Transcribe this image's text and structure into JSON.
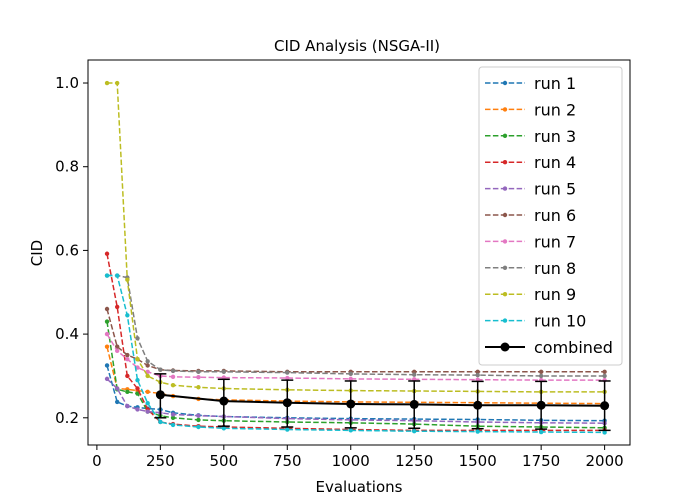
{
  "chart_data": {
    "type": "line",
    "title": "CID Analysis (NSGA-II)",
    "xlabel": "Evaluations",
    "ylabel": "CID",
    "xlim": [
      -35,
      2100
    ],
    "ylim": [
      0.135,
      1.055
    ],
    "xticks": [
      0,
      250,
      500,
      750,
      1000,
      1250,
      1500,
      1750,
      2000
    ],
    "yticks": [
      0.2,
      0.4,
      0.6,
      0.8,
      1.0
    ],
    "ytick_labels": [
      "0.2",
      "0.4",
      "0.6",
      "0.8",
      "1.0"
    ],
    "grid": false,
    "legend_position": "top-right",
    "series": [
      {
        "name": "run 1",
        "color": "#1f77b4",
        "x": [
          40,
          80,
          120,
          160,
          200,
          250,
          300,
          400,
          500,
          750,
          1000,
          1250,
          1500,
          1750,
          2000
        ],
        "y": [
          0.325,
          0.238,
          0.228,
          0.225,
          0.222,
          0.22,
          0.212,
          0.206,
          0.203,
          0.2,
          0.198,
          0.197,
          0.196,
          0.194,
          0.193
        ]
      },
      {
        "name": "run 2",
        "color": "#ff7f0e",
        "x": [
          40,
          80,
          120,
          160,
          200,
          250,
          300,
          400,
          500,
          750,
          1000,
          1250,
          1500,
          1750,
          2000
        ],
        "y": [
          0.37,
          0.27,
          0.268,
          0.265,
          0.262,
          0.258,
          0.252,
          0.245,
          0.243,
          0.24,
          0.238,
          0.237,
          0.236,
          0.235,
          0.234
        ]
      },
      {
        "name": "run 3",
        "color": "#2ca02c",
        "x": [
          40,
          80,
          120,
          160,
          200,
          250,
          300,
          400,
          500,
          750,
          1000,
          1250,
          1500,
          1750,
          2000
        ],
        "y": [
          0.43,
          0.268,
          0.262,
          0.258,
          0.215,
          0.205,
          0.2,
          0.195,
          0.193,
          0.19,
          0.188,
          0.185,
          0.18,
          0.178,
          0.176
        ]
      },
      {
        "name": "run 4",
        "color": "#d62728",
        "x": [
          40,
          80,
          120,
          160,
          200,
          250,
          300,
          400,
          500,
          750,
          1000,
          1250,
          1500,
          1750,
          2000
        ],
        "y": [
          0.592,
          0.465,
          0.3,
          0.27,
          0.22,
          0.19,
          0.185,
          0.18,
          0.178,
          0.175,
          0.172,
          0.17,
          0.17,
          0.17,
          0.17
        ]
      },
      {
        "name": "run 5",
        "color": "#9467bd",
        "x": [
          40,
          80,
          120,
          160,
          200,
          250,
          300,
          400,
          500,
          750,
          1000,
          1250,
          1500,
          1750,
          2000
        ],
        "y": [
          0.293,
          0.27,
          0.228,
          0.22,
          0.215,
          0.212,
          0.208,
          0.205,
          0.203,
          0.198,
          0.195,
          0.193,
          0.19,
          0.188,
          0.187
        ]
      },
      {
        "name": "run 6",
        "color": "#8c564b",
        "x": [
          40,
          80,
          120,
          160,
          200,
          250,
          300,
          400,
          500,
          750,
          1000,
          1250,
          1500,
          1750,
          2000
        ],
        "y": [
          0.46,
          0.37,
          0.35,
          0.34,
          0.325,
          0.315,
          0.313,
          0.312,
          0.312,
          0.31,
          0.31,
          0.31,
          0.31,
          0.31,
          0.31
        ]
      },
      {
        "name": "run 7",
        "color": "#e377c2",
        "x": [
          40,
          80,
          120,
          160,
          200,
          250,
          300,
          400,
          500,
          750,
          1000,
          1250,
          1500,
          1750,
          2000
        ],
        "y": [
          0.4,
          0.36,
          0.34,
          0.32,
          0.31,
          0.3,
          0.298,
          0.297,
          0.296,
          0.295,
          0.293,
          0.292,
          0.291,
          0.29,
          0.29
        ]
      },
      {
        "name": "run 8",
        "color": "#7f7f7f",
        "x": [
          40,
          80,
          120,
          160,
          200,
          250,
          300,
          400,
          500,
          750,
          1000,
          1250,
          1500,
          1750,
          2000
        ],
        "y": [
          0.54,
          0.54,
          0.535,
          0.39,
          0.335,
          0.315,
          0.312,
          0.31,
          0.31,
          0.308,
          0.305,
          0.303,
          0.302,
          0.3,
          0.3
        ]
      },
      {
        "name": "run 9",
        "color": "#bcbd22",
        "x": [
          40,
          80,
          120,
          160,
          200,
          250,
          300,
          400,
          500,
          750,
          1000,
          1250,
          1500,
          1750,
          2000
        ],
        "y": [
          1.0,
          1.0,
          0.53,
          0.34,
          0.3,
          0.285,
          0.278,
          0.273,
          0.27,
          0.267,
          0.265,
          0.264,
          0.263,
          0.262,
          0.262
        ]
      },
      {
        "name": "run 10",
        "color": "#17becf",
        "x": [
          40,
          80,
          120,
          160,
          200,
          250,
          300,
          400,
          500,
          750,
          1000,
          1250,
          1500,
          1750,
          2000
        ],
        "y": [
          0.54,
          0.54,
          0.445,
          0.29,
          0.235,
          0.19,
          0.183,
          0.178,
          0.175,
          0.172,
          0.17,
          0.168,
          0.167,
          0.166,
          0.165
        ]
      }
    ],
    "combined": {
      "name": "combined",
      "color": "#000000",
      "x": [
        250,
        500,
        750,
        1000,
        1250,
        1500,
        1750,
        2000
      ],
      "y": [
        0.255,
        0.24,
        0.236,
        0.233,
        0.232,
        0.23,
        0.23,
        0.229
      ],
      "err_low": [
        0.2,
        0.18,
        0.178,
        0.176,
        0.175,
        0.174,
        0.173,
        0.17
      ],
      "err_high": [
        0.305,
        0.292,
        0.29,
        0.288,
        0.288,
        0.287,
        0.287,
        0.288
      ]
    }
  }
}
